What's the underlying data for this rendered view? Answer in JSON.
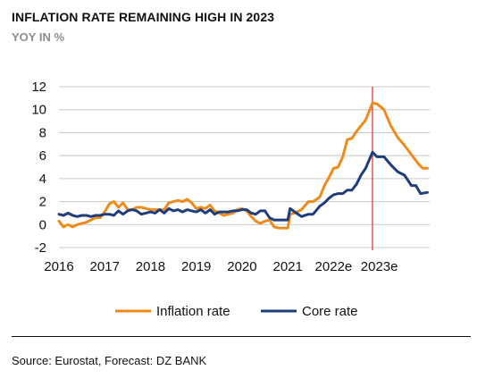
{
  "header": {
    "title": "INFLATION RATE REMAINING HIGH IN 2023",
    "subtitle": "YOY IN %"
  },
  "footer": {
    "source": "Source: Eurostat, Forecast: DZ BANK"
  },
  "chart_data": {
    "type": "line",
    "title": "INFLATION RATE REMAINING HIGH IN 2023",
    "subtitle": "YOY IN %",
    "xlabel": "",
    "ylabel": "",
    "x_tick_labels": [
      "2016",
      "2017",
      "2018",
      "2019",
      "2020",
      "2021",
      "2022e",
      "2023e"
    ],
    "x_tick_values": [
      2016,
      2017,
      2018,
      2019,
      2020,
      2021,
      2022,
      2023
    ],
    "xlim": [
      2016,
      2024.1
    ],
    "ylim": [
      -2,
      12
    ],
    "y_ticks": [
      -2,
      0,
      2,
      4,
      6,
      8,
      10,
      12
    ],
    "y_tick_labels": [
      "-2",
      "0",
      "2",
      "4",
      "6",
      "8",
      "10",
      "12"
    ],
    "grid": "horizontal",
    "legend": "bottom",
    "vertical_marker": {
      "x": 2022.85,
      "color": "#e8262a"
    },
    "series": [
      {
        "name": "Inflation rate",
        "color": "#ef8a1c",
        "points": [
          [
            2016.0,
            0.3
          ],
          [
            2016.1,
            -0.2
          ],
          [
            2016.2,
            0.0
          ],
          [
            2016.3,
            -0.2
          ],
          [
            2016.4,
            0.0
          ],
          [
            2016.5,
            0.1
          ],
          [
            2016.6,
            0.2
          ],
          [
            2016.7,
            0.4
          ],
          [
            2016.8,
            0.6
          ],
          [
            2016.9,
            0.6
          ],
          [
            2017.0,
            1.1
          ],
          [
            2017.1,
            1.8
          ],
          [
            2017.2,
            2.0
          ],
          [
            2017.3,
            1.5
          ],
          [
            2017.4,
            1.9
          ],
          [
            2017.5,
            1.3
          ],
          [
            2017.6,
            1.3
          ],
          [
            2017.7,
            1.5
          ],
          [
            2017.8,
            1.5
          ],
          [
            2017.9,
            1.4
          ],
          [
            2018.0,
            1.3
          ],
          [
            2018.1,
            1.3
          ],
          [
            2018.2,
            1.3
          ],
          [
            2018.3,
            1.3
          ],
          [
            2018.4,
            1.9
          ],
          [
            2018.5,
            2.0
          ],
          [
            2018.6,
            2.1
          ],
          [
            2018.7,
            2.0
          ],
          [
            2018.8,
            2.2
          ],
          [
            2018.9,
            1.9
          ],
          [
            2019.0,
            1.4
          ],
          [
            2019.1,
            1.5
          ],
          [
            2019.2,
            1.4
          ],
          [
            2019.3,
            1.7
          ],
          [
            2019.4,
            1.2
          ],
          [
            2019.5,
            1.0
          ],
          [
            2019.6,
            0.8
          ],
          [
            2019.7,
            0.9
          ],
          [
            2019.8,
            1.0
          ],
          [
            2019.9,
            1.3
          ],
          [
            2020.0,
            1.4
          ],
          [
            2020.1,
            1.2
          ],
          [
            2020.2,
            0.7
          ],
          [
            2020.3,
            0.3
          ],
          [
            2020.4,
            0.1
          ],
          [
            2020.5,
            0.3
          ],
          [
            2020.6,
            0.4
          ],
          [
            2020.7,
            -0.2
          ],
          [
            2020.8,
            -0.3
          ],
          [
            2020.9,
            -0.3
          ],
          [
            2021.0,
            -0.3
          ],
          [
            2021.05,
            0.9
          ],
          [
            2021.15,
            1.0
          ],
          [
            2021.3,
            1.3
          ],
          [
            2021.45,
            2.0
          ],
          [
            2021.55,
            2.0
          ],
          [
            2021.7,
            2.4
          ],
          [
            2021.8,
            3.4
          ],
          [
            2021.9,
            4.1
          ],
          [
            2022.0,
            4.9
          ],
          [
            2022.1,
            5.0
          ],
          [
            2022.2,
            5.9
          ],
          [
            2022.3,
            7.4
          ],
          [
            2022.4,
            7.5
          ],
          [
            2022.5,
            8.1
          ],
          [
            2022.6,
            8.6
          ],
          [
            2022.7,
            9.1
          ],
          [
            2022.85,
            10.6
          ],
          [
            2022.95,
            10.5
          ],
          [
            2023.1,
            10.0
          ],
          [
            2023.25,
            8.6
          ],
          [
            2023.4,
            7.6
          ],
          [
            2023.55,
            6.9
          ],
          [
            2023.7,
            6.1
          ],
          [
            2023.85,
            5.3
          ],
          [
            2023.95,
            4.9
          ],
          [
            2024.05,
            4.9
          ]
        ]
      },
      {
        "name": "Core rate",
        "color": "#1f3d7a",
        "points": [
          [
            2016.0,
            0.9
          ],
          [
            2016.1,
            0.8
          ],
          [
            2016.2,
            1.0
          ],
          [
            2016.3,
            0.8
          ],
          [
            2016.4,
            0.7
          ],
          [
            2016.5,
            0.8
          ],
          [
            2016.6,
            0.8
          ],
          [
            2016.7,
            0.7
          ],
          [
            2016.8,
            0.8
          ],
          [
            2016.9,
            0.8
          ],
          [
            2017.0,
            0.9
          ],
          [
            2017.1,
            0.9
          ],
          [
            2017.2,
            0.8
          ],
          [
            2017.3,
            1.2
          ],
          [
            2017.4,
            0.9
          ],
          [
            2017.5,
            1.2
          ],
          [
            2017.6,
            1.3
          ],
          [
            2017.7,
            1.2
          ],
          [
            2017.8,
            0.9
          ],
          [
            2017.9,
            1.0
          ],
          [
            2018.0,
            1.1
          ],
          [
            2018.1,
            1.0
          ],
          [
            2018.2,
            1.3
          ],
          [
            2018.3,
            1.0
          ],
          [
            2018.4,
            1.4
          ],
          [
            2018.5,
            1.2
          ],
          [
            2018.6,
            1.3
          ],
          [
            2018.7,
            1.1
          ],
          [
            2018.8,
            1.3
          ],
          [
            2018.9,
            1.2
          ],
          [
            2019.0,
            1.1
          ],
          [
            2019.1,
            1.3
          ],
          [
            2019.2,
            1.0
          ],
          [
            2019.3,
            1.3
          ],
          [
            2019.4,
            0.9
          ],
          [
            2019.5,
            1.1
          ],
          [
            2019.6,
            1.1
          ],
          [
            2019.7,
            1.1
          ],
          [
            2019.8,
            1.2
          ],
          [
            2019.9,
            1.2
          ],
          [
            2020.0,
            1.3
          ],
          [
            2020.1,
            1.3
          ],
          [
            2020.2,
            1.0
          ],
          [
            2020.3,
            0.9
          ],
          [
            2020.4,
            1.2
          ],
          [
            2020.5,
            1.2
          ],
          [
            2020.6,
            0.6
          ],
          [
            2020.7,
            0.4
          ],
          [
            2020.8,
            0.4
          ],
          [
            2020.9,
            0.4
          ],
          [
            2021.0,
            0.4
          ],
          [
            2021.05,
            1.4
          ],
          [
            2021.15,
            1.1
          ],
          [
            2021.3,
            0.7
          ],
          [
            2021.45,
            0.9
          ],
          [
            2021.55,
            0.9
          ],
          [
            2021.7,
            1.6
          ],
          [
            2021.8,
            1.9
          ],
          [
            2021.9,
            2.3
          ],
          [
            2022.0,
            2.6
          ],
          [
            2022.1,
            2.7
          ],
          [
            2022.2,
            2.7
          ],
          [
            2022.3,
            3.0
          ],
          [
            2022.4,
            3.0
          ],
          [
            2022.5,
            3.5
          ],
          [
            2022.6,
            4.3
          ],
          [
            2022.7,
            4.9
          ],
          [
            2022.85,
            6.3
          ],
          [
            2022.95,
            5.9
          ],
          [
            2023.1,
            5.9
          ],
          [
            2023.25,
            5.2
          ],
          [
            2023.4,
            4.6
          ],
          [
            2023.55,
            4.3
          ],
          [
            2023.7,
            3.4
          ],
          [
            2023.8,
            3.4
          ],
          [
            2023.9,
            2.7
          ],
          [
            2024.05,
            2.8
          ]
        ]
      }
    ]
  }
}
